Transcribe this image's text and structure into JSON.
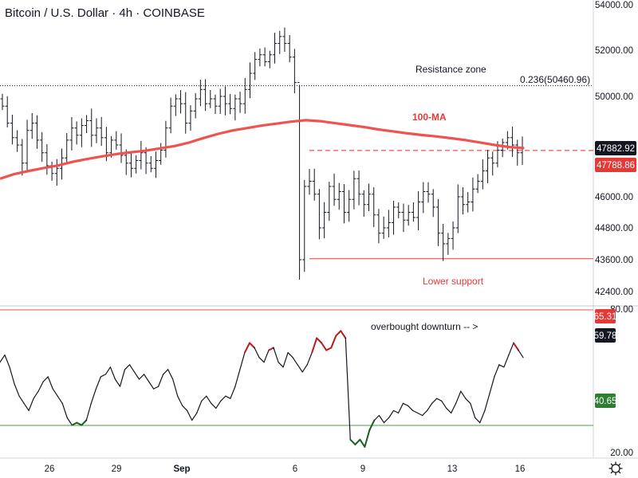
{
  "header": {
    "title": "Bitcoin / U.S. Dollar · 4h · COINBASE"
  },
  "colors": {
    "bars": "#131722",
    "ma": "#ef5350",
    "rsi_line": "#131722",
    "rsi_overbought": "#b71c1c",
    "rsi_oversold": "#1b5e20",
    "upper_line": "#ef5350",
    "lower_line": "#43a047",
    "tag_dark": "#131722",
    "tag_red": "#e53935",
    "tag_green": "#2e7d32"
  },
  "annotations": {
    "resistance_zone": "Resistance zone",
    "fib_label": "0.236(50460.96)",
    "ma_label": "100-MA",
    "lower_support": "Lower support",
    "overbought_downturn": "overbought downturn -- >"
  },
  "price_tags": {
    "last": "47882.92",
    "level": "47788.86"
  },
  "rsi_tags": {
    "upper": "65.31",
    "current": "59.78",
    "lower": "40.65"
  },
  "chart_data": [
    {
      "type": "ohlc",
      "title": "Bitcoin / U.S. Dollar · 4h · COINBASE",
      "y_ticks": [
        "54000.00",
        "52000.00",
        "50000.00",
        "48000.00",
        "46000.00",
        "44800.00",
        "43600.00",
        "42400.00"
      ],
      "x_ticks": [
        "26",
        "29",
        "Sep",
        "6",
        "9",
        "13",
        "16"
      ],
      "grid": false,
      "price_levels": [
        {
          "label": "0.236(50460.96)",
          "value": 50460.96,
          "style": "dotted"
        },
        {
          "label": "47788.86",
          "value": 47788.86,
          "style": "dashed"
        },
        {
          "label": "Lower support",
          "value": 43640,
          "style": "solid"
        }
      ],
      "series": [
        {
          "name": "100-MA",
          "values": [
            46700,
            46880,
            47000,
            47110,
            47210,
            47350,
            47460,
            47560,
            47650,
            47720,
            47780,
            47870,
            47960,
            48100,
            48290,
            48460,
            48600,
            48700,
            48800,
            48880,
            48960,
            49020,
            48980,
            48900,
            48820,
            48740,
            48640,
            48560,
            48480,
            48410,
            48350,
            48280,
            48200,
            48100,
            48000,
            47920,
            47880
          ]
        }
      ],
      "closes": [
        49600,
        48900,
        48300,
        48000,
        47300,
        48600,
        48900,
        48200,
        47700,
        47200,
        46900,
        47100,
        47500,
        48200,
        48700,
        48400,
        48800,
        49000,
        48400,
        48700,
        48300,
        47700,
        48200,
        48000,
        47600,
        47300,
        47100,
        47400,
        47700,
        47300,
        47100,
        47400,
        47800,
        48700,
        49600,
        49900,
        49700,
        48900,
        49400,
        49900,
        50300,
        49700,
        49900,
        49600,
        50000,
        49700,
        49500,
        49900,
        49700,
        50300,
        51000,
        51600,
        51800,
        51500,
        51800,
        52300,
        52600,
        52300,
        51700,
        50600,
        43600,
        46400,
        46600,
        46100,
        44800,
        45400,
        46400,
        45900,
        46200,
        45400,
        45900,
        46700,
        46100,
        45700,
        46100,
        45300,
        44600,
        44800,
        45000,
        45600,
        45400,
        45100,
        45400,
        45200,
        45800,
        46200,
        46100,
        45600,
        44600,
        44200,
        44400,
        44800,
        46000,
        45700,
        45800,
        46300,
        46600,
        47000,
        47500,
        47300,
        47800,
        48100,
        48300,
        48000,
        47700,
        47880
      ]
    },
    {
      "type": "line",
      "title": "RSI",
      "y_ticks": [
        "80.00",
        "20.00"
      ],
      "levels": [
        {
          "label": "65.31",
          "value": 65.31
        },
        {
          "label": "40.65",
          "value": 40.65
        }
      ],
      "series": [
        {
          "values": [
            58,
            61,
            56,
            49,
            44,
            41,
            38,
            43,
            46,
            50,
            52,
            47,
            44,
            41,
            35,
            32,
            33,
            32,
            34,
            41,
            47,
            52,
            53,
            56,
            51,
            48,
            55,
            57,
            54,
            51,
            53,
            50,
            47,
            48,
            53,
            55,
            51,
            44,
            40,
            38,
            34,
            37,
            42,
            44,
            41,
            39,
            42,
            44,
            43,
            48,
            55,
            62,
            66,
            64,
            60,
            58,
            63,
            64,
            58,
            56,
            62,
            60,
            57,
            54,
            57,
            62,
            68,
            66,
            63,
            64,
            69,
            71,
            68,
            26,
            24,
            26,
            23,
            30,
            34,
            36,
            33,
            35,
            38,
            37,
            41,
            40,
            38,
            37,
            36,
            38,
            41,
            43,
            42,
            39,
            37,
            41,
            46,
            43,
            41,
            35,
            33,
            38,
            45,
            52,
            57,
            56,
            61,
            66,
            63,
            60
          ]
        }
      ]
    }
  ]
}
